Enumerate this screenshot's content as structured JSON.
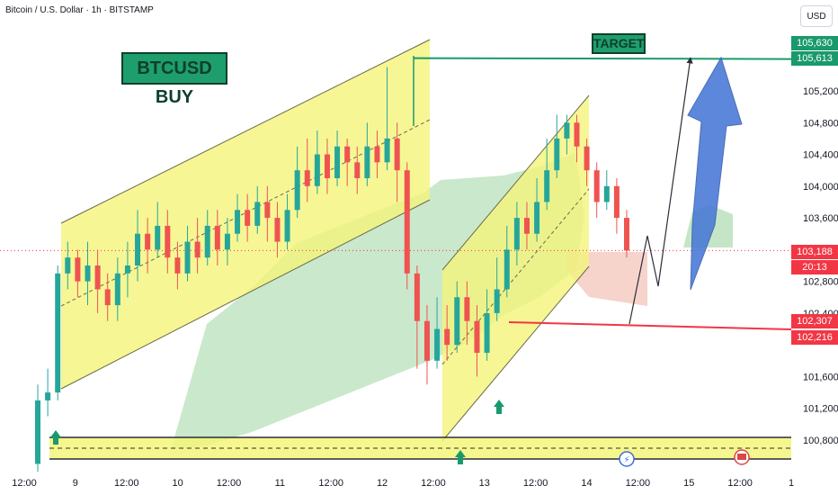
{
  "header": {
    "title": "Bitcoin / U.S. Dollar · 1h · BITSTAMP",
    "currency": "USD"
  },
  "annotations": {
    "buy_label": "BTCUSD BUY",
    "target_label": "TARGET"
  },
  "badges": {
    "target_high": "105,630",
    "target_low": "105,613",
    "current_price": "103,188",
    "countdown": "20:13",
    "support_high": "102,307",
    "support_low": "102,216"
  },
  "colors": {
    "up": "#26a69a",
    "down": "#ef5350",
    "channel": "#f4f47a",
    "target": "#1a9a6c",
    "support": "#f23645",
    "arrow": "#4b7bd6"
  },
  "chart_data": {
    "type": "candlestick",
    "title": "Bitcoin / U.S. Dollar · 1h · BITSTAMP",
    "y_ticks": [
      "105,200",
      "104,800",
      "104,400",
      "104,000",
      "103,600",
      "102,800",
      "102,400",
      "101,600",
      "101,200",
      "100,800"
    ],
    "y_tick_values": [
      105200,
      104800,
      104400,
      104000,
      103600,
      102800,
      102400,
      101600,
      101200,
      100800
    ],
    "x_ticks": [
      "12:00",
      "9",
      "12:00",
      "10",
      "12:00",
      "11",
      "12:00",
      "12",
      "12:00",
      "13",
      "12:00",
      "14",
      "12:00",
      "15",
      "12:00",
      "1"
    ],
    "ylim": [
      100400,
      105900
    ],
    "price_levels": {
      "target": 105613,
      "current": 103188,
      "support": 102216,
      "base_support": 100800
    },
    "candles": [
      [
        100500,
        101300,
        100400,
        101500
      ],
      [
        101300,
        101400,
        101100,
        101700
      ],
      [
        101400,
        102900,
        101300,
        103000
      ],
      [
        102900,
        103100,
        102700,
        103300
      ],
      [
        103100,
        102800,
        102600,
        103200
      ],
      [
        102800,
        103000,
        102500,
        103300
      ],
      [
        103000,
        102700,
        102400,
        103200
      ],
      [
        102700,
        102500,
        102300,
        102900
      ],
      [
        102500,
        102900,
        102300,
        103100
      ],
      [
        102900,
        103000,
        102600,
        103300
      ],
      [
        103000,
        103400,
        102800,
        103700
      ],
      [
        103400,
        103200,
        102900,
        103600
      ],
      [
        103200,
        103500,
        103100,
        103800
      ],
      [
        103500,
        103100,
        102900,
        103700
      ],
      [
        103100,
        102900,
        102700,
        103300
      ],
      [
        102900,
        103300,
        102800,
        103500
      ],
      [
        103300,
        103100,
        102900,
        103600
      ],
      [
        103100,
        103500,
        103000,
        103700
      ],
      [
        103500,
        103200,
        103000,
        103700
      ],
      [
        103200,
        103400,
        103000,
        103600
      ],
      [
        103400,
        103700,
        103300,
        103900
      ],
      [
        103700,
        103500,
        103300,
        103900
      ],
      [
        103500,
        103800,
        103400,
        104000
      ],
      [
        103800,
        103600,
        103300,
        104000
      ],
      [
        103600,
        103300,
        103100,
        103800
      ],
      [
        103300,
        103700,
        103200,
        103900
      ],
      [
        103700,
        104200,
        103600,
        104500
      ],
      [
        104200,
        104000,
        103800,
        104600
      ],
      [
        104000,
        104400,
        103900,
        104700
      ],
      [
        104400,
        104100,
        103900,
        104600
      ],
      [
        104100,
        104500,
        104000,
        104700
      ],
      [
        104500,
        104300,
        104000,
        104600
      ],
      [
        104300,
        104100,
        103900,
        104500
      ],
      [
        104100,
        104500,
        104000,
        104800
      ],
      [
        104500,
        104300,
        104100,
        104700
      ],
      [
        104300,
        104600,
        104200,
        105500
      ],
      [
        104600,
        104200,
        103800,
        104800
      ],
      [
        104200,
        102900,
        102700,
        104300
      ],
      [
        102900,
        102300,
        101700,
        103000
      ],
      [
        102300,
        101800,
        101500,
        102500
      ],
      [
        101800,
        102200,
        101700,
        102600
      ],
      [
        102200,
        102000,
        101800,
        102500
      ],
      [
        102000,
        102600,
        101900,
        102800
      ],
      [
        102600,
        102300,
        102000,
        102800
      ],
      [
        102300,
        101900,
        101600,
        102500
      ],
      [
        101900,
        102400,
        101800,
        102700
      ],
      [
        102400,
        102700,
        102300,
        103100
      ],
      [
        102700,
        103200,
        102600,
        103500
      ],
      [
        103200,
        103600,
        103000,
        103800
      ],
      [
        103600,
        103400,
        103200,
        103800
      ],
      [
        103400,
        103800,
        103300,
        104100
      ],
      [
        103800,
        104200,
        103700,
        104600
      ],
      [
        104200,
        104600,
        104100,
        104900
      ],
      [
        104600,
        104800,
        104400,
        104900
      ],
      [
        104800,
        104500,
        104300,
        104900
      ],
      [
        104500,
        104200,
        104000,
        104600
      ],
      [
        104200,
        103800,
        103600,
        104300
      ],
      [
        103800,
        104000,
        103700,
        104200
      ],
      [
        104000,
        103600,
        103400,
        104100
      ],
      [
        103600,
        103188,
        103100,
        103700
      ]
    ]
  }
}
